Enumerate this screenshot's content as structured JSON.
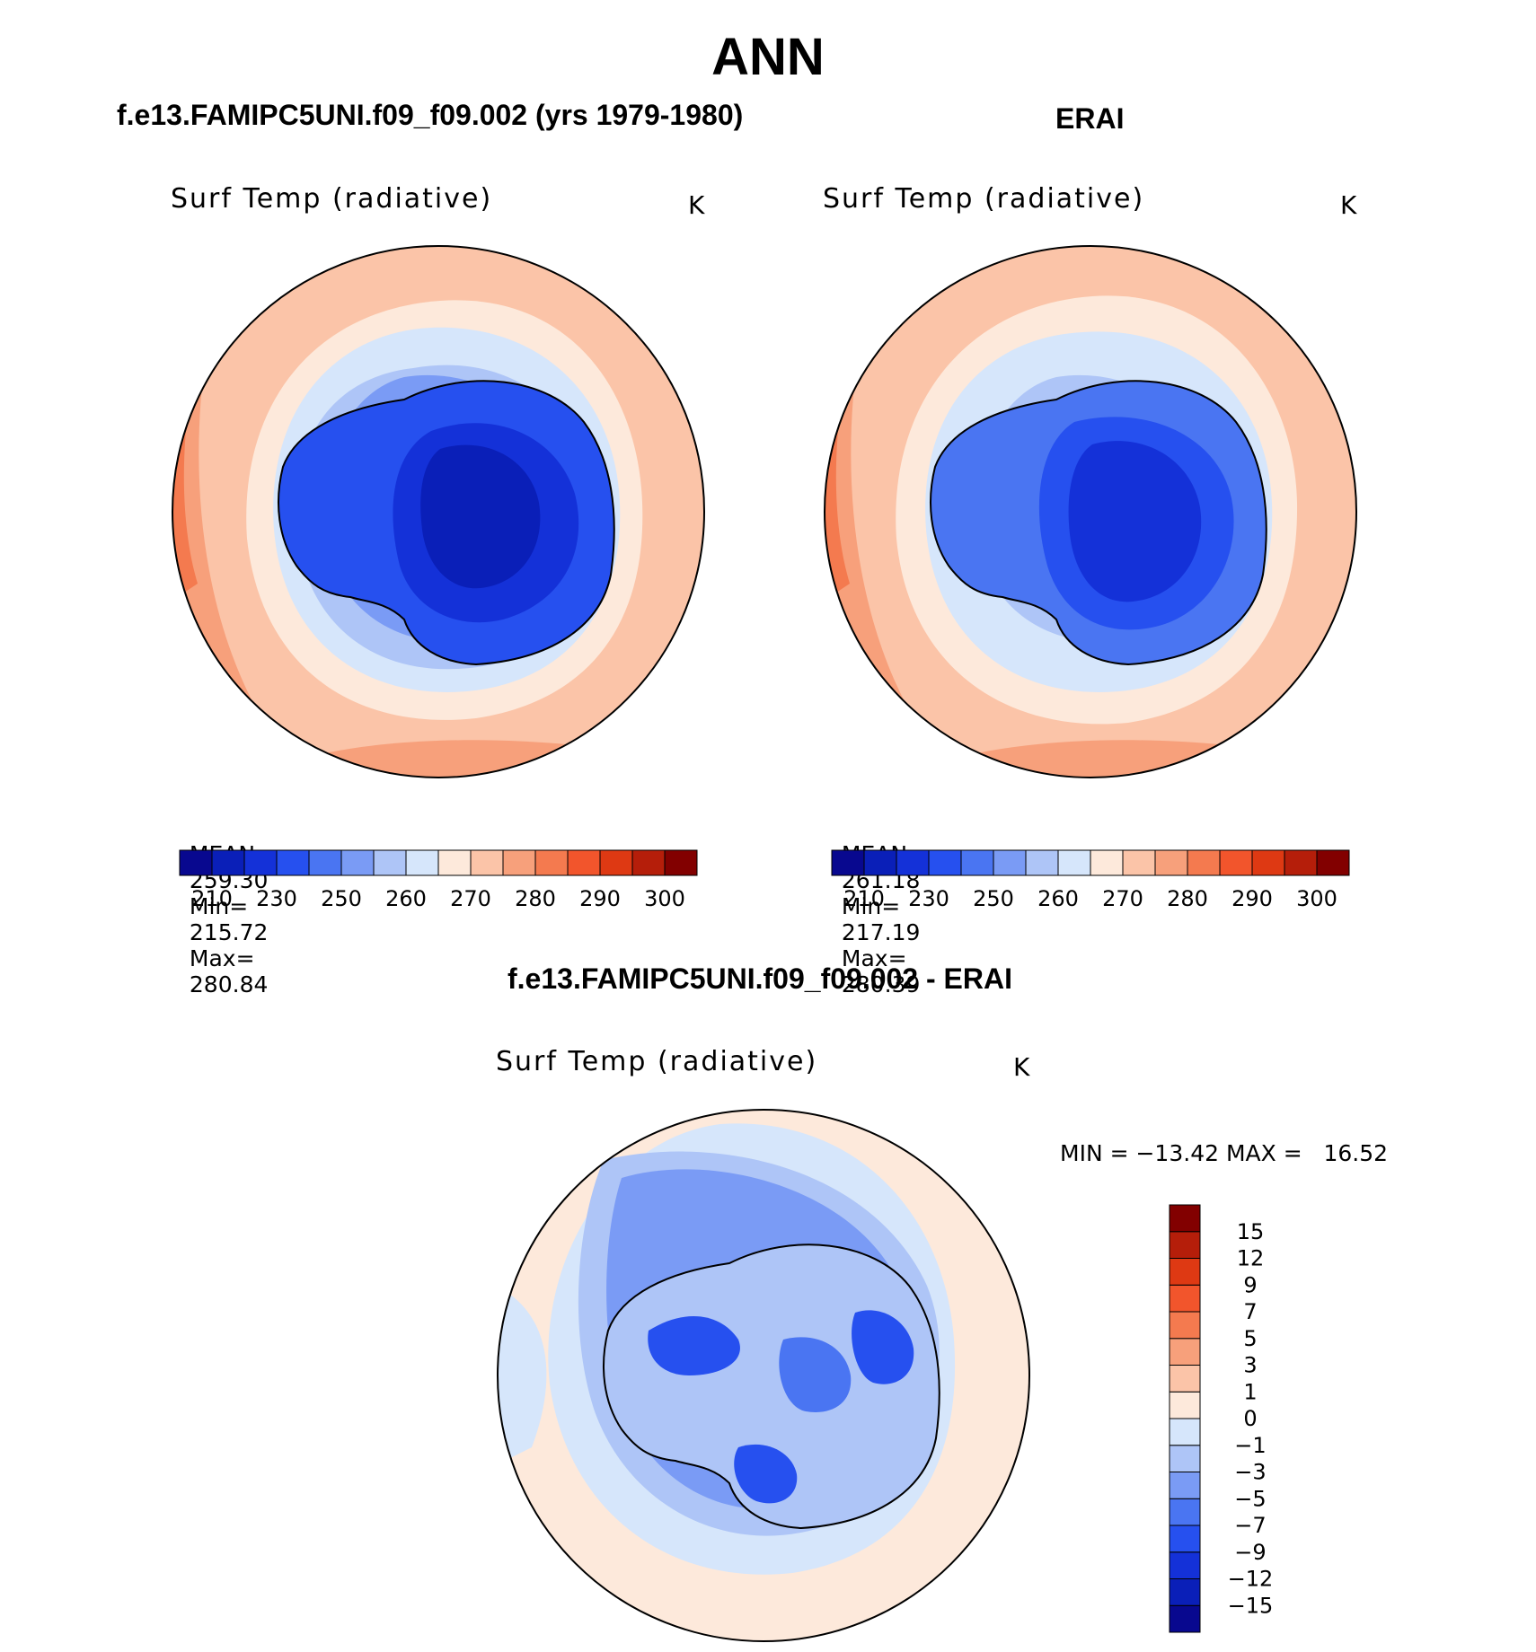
{
  "main_title": "ANN",
  "panels": [
    {
      "title": "f.e13.FAMIPC5UNI.f09_f09.002 (yrs 1979-1980)",
      "variable": "Surf Temp (radiative)",
      "units": "K",
      "mean_label": "MEAN=",
      "mean": "259.30",
      "min_label": "Min=",
      "min": "215.72",
      "max_label": "Max=",
      "max": "280.84"
    },
    {
      "title": "ERAI",
      "variable": "Surf Temp (radiative)",
      "units": "K",
      "mean_label": "MEAN=",
      "mean": "261.18",
      "min_label": "Min=",
      "min": "217.19",
      "max_label": "Max=",
      "max": "280.39"
    }
  ],
  "abs_colorbar": {
    "colors": [
      "#08088f",
      "#0a1fb8",
      "#1431d8",
      "#2650ef",
      "#4a75f2",
      "#7a9bf5",
      "#aec5f7",
      "#d6e6fb",
      "#fde9db",
      "#fbc4a8",
      "#f7a07b",
      "#f47a4f",
      "#f2552c",
      "#de3913",
      "#b51e0a",
      "#820000"
    ],
    "labels": [
      "210",
      "230",
      "250",
      "260",
      "270",
      "280",
      "290",
      "300"
    ]
  },
  "diff_panel": {
    "title": "f.e13.FAMIPC5UNI.f09_f09.002 - ERAI",
    "variable": "Surf Temp (radiative)",
    "units": "K",
    "minmax": "MIN = −13.42 MAX =   16.52"
  },
  "diff_colorbar": {
    "colors": [
      "#08088f",
      "#0a1fb8",
      "#1431d8",
      "#2650ef",
      "#4a75f2",
      "#7a9bf5",
      "#aec5f7",
      "#d6e6fb",
      "#fde9db",
      "#fbc4a8",
      "#f7a07b",
      "#f47a4f",
      "#f2552c",
      "#de3913",
      "#b51e0a",
      "#820000"
    ],
    "labels": [
      "−15",
      "−12",
      "−9",
      "−7",
      "−5",
      "−3",
      "−1",
      "0",
      "1",
      "3",
      "5",
      "7",
      "9",
      "12",
      "15"
    ]
  }
}
